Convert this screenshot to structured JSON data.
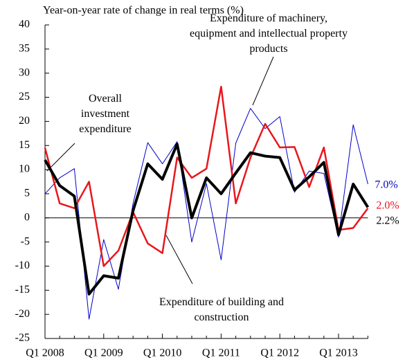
{
  "chart_data": {
    "type": "line",
    "y_axis_label": "Year-on-year rate of change in real terms (%)",
    "categories": [
      "Q1 2008",
      null,
      null,
      null,
      "Q1 2009",
      null,
      null,
      null,
      "Q1 2010",
      null,
      null,
      null,
      "Q1 2011",
      null,
      null,
      null,
      "Q1 2012",
      null,
      null,
      null,
      "Q1 2013",
      null,
      null
    ],
    "series": [
      {
        "name": "Expenditure of machinery, equipment and intellectual property products",
        "color": "#0000cc",
        "values": [
          5,
          8.3,
          10.2,
          -21,
          -4.5,
          -14.8,
          3,
          15.6,
          11.2,
          15.8,
          -5,
          7.1,
          -8.7,
          15.5,
          22.7,
          18.5,
          21,
          5.3,
          9.7,
          9.2,
          -4,
          19.3,
          7.0
        ],
        "value_labels": [
          null,
          null,
          null,
          null,
          null,
          null,
          null,
          null,
          null,
          null,
          null,
          null,
          null,
          null,
          null,
          null,
          null,
          null,
          null,
          null,
          null,
          null,
          "7.0%"
        ]
      },
      {
        "name": "Expenditure of building and construction",
        "color": "#e8161b",
        "values": [
          14.5,
          3,
          2,
          7.5,
          -10,
          -6.8,
          1.2,
          -5.3,
          -7.3,
          12.5,
          8.3,
          10.2,
          27.2,
          3,
          12.5,
          19.5,
          14.6,
          14.7,
          6.4,
          14.6,
          -2.5,
          -2.1,
          2.0
        ],
        "value_labels": [
          null,
          null,
          null,
          null,
          null,
          null,
          null,
          null,
          null,
          null,
          null,
          null,
          null,
          null,
          null,
          null,
          null,
          null,
          null,
          null,
          null,
          null,
          "2.0%"
        ]
      },
      {
        "name": "Overall investment expenditure",
        "color": "#000000",
        "values": [
          12,
          6.7,
          4.5,
          -15.8,
          -12,
          -12.5,
          1.5,
          11.2,
          8,
          15.3,
          0,
          8.3,
          5,
          9.3,
          13.5,
          12.8,
          12.5,
          5.8,
          8.5,
          11.5,
          -3.5,
          7,
          2.2
        ],
        "value_labels": [
          null,
          null,
          null,
          null,
          null,
          null,
          null,
          null,
          null,
          null,
          null,
          null,
          null,
          null,
          null,
          null,
          null,
          null,
          null,
          null,
          null,
          null,
          "2.2%"
        ]
      }
    ],
    "ylim": [
      -25,
      40
    ],
    "yticks": [
      -25,
      -20,
      -15,
      -10,
      -5,
      0,
      5,
      10,
      15,
      20,
      25,
      30,
      35,
      40
    ]
  }
}
